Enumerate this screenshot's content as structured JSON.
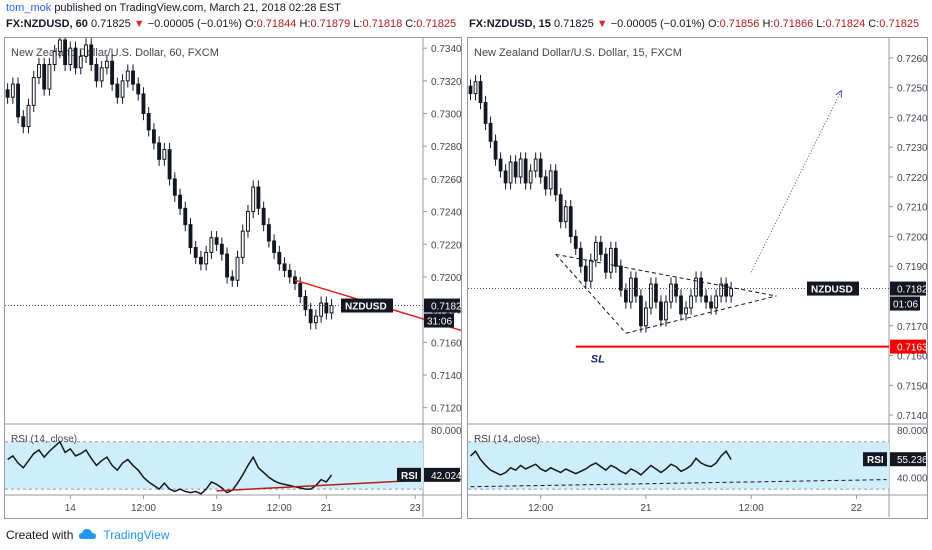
{
  "header": {
    "user": "tom_mok",
    "published": "published on TradingView.com, March 21, 2018 02:28 EST"
  },
  "footer": {
    "created_with": "Created with",
    "brand": "TradingView"
  },
  "colors": {
    "up_down_candles": "#131722",
    "rsi_band": "#cdeefa",
    "rsi_line": "#131722",
    "trendline_red": "#e02020",
    "sl_line": "#f00000",
    "projection": "#3f51b5",
    "price_label_bg": "#131722",
    "sl_label_bg": "#f00000"
  },
  "chart_data": [
    {
      "type": "candlestick",
      "ohlc_header": {
        "symbol": "FX:NZDUSD, 60",
        "last": "0.71825",
        "arrow": "▼",
        "change": "−0.00005 (−0.01%)",
        "o_label": "O:",
        "o": "0.71844",
        "h_label": "H:",
        "h": "0.71879",
        "l_label": "L:",
        "l": "0.71818",
        "c_label": "C:",
        "c": "0.71825"
      },
      "title": "New Zealand Dollar/U.S. Dollar, 60, FXCM",
      "price_axis": {
        "ylim": [
          0.711,
          0.7345
        ],
        "ticks": [
          "0.73400",
          "0.73200",
          "0.73000",
          "0.72800",
          "0.72600",
          "0.72400",
          "0.72200",
          "0.72000",
          "0.71800",
          "0.71600",
          "0.71400",
          "0.71200"
        ]
      },
      "last_price": 0.71825,
      "price_label": {
        "symbol": "NZDUSD",
        "value": "0.71825",
        "countdown": "31:06"
      },
      "close_series": [
        0.731,
        0.7318,
        0.7298,
        0.7292,
        0.7305,
        0.7322,
        0.733,
        0.7315,
        0.733,
        0.7338,
        0.7345,
        0.733,
        0.734,
        0.7328,
        0.7335,
        0.7342,
        0.733,
        0.732,
        0.7328,
        0.7332,
        0.7318,
        0.731,
        0.732,
        0.7326,
        0.7318,
        0.7312,
        0.73,
        0.729,
        0.7282,
        0.7272,
        0.7278,
        0.726,
        0.725,
        0.7242,
        0.7232,
        0.7218,
        0.7212,
        0.7208,
        0.7215,
        0.7224,
        0.722,
        0.7214,
        0.72,
        0.7198,
        0.7212,
        0.7228,
        0.724,
        0.7255,
        0.7242,
        0.7232,
        0.7222,
        0.7215,
        0.7208,
        0.7204,
        0.72,
        0.7196,
        0.7188,
        0.718,
        0.7172,
        0.7176,
        0.7184,
        0.7178,
        0.71825
      ],
      "candle_range": 0.0009,
      "trendline": {
        "from": [
          55,
          0.7198
        ],
        "to": [
          99,
          0.71555
        ]
      },
      "x_labels": [
        {
          "i": 12,
          "text": "14"
        },
        {
          "i": 26,
          "text": "12:00"
        },
        {
          "i": 40,
          "text": "19"
        },
        {
          "i": 52,
          "text": "12:00"
        },
        {
          "i": 61,
          "text": "21"
        },
        {
          "i": 78,
          "text": "23"
        }
      ],
      "x_count": 80,
      "rsi": {
        "label": "RSI (14, close)",
        "badge": "RSI",
        "value": "42.0249",
        "value_num": 42.0249,
        "ylim": [
          25,
          85
        ],
        "ticks": [
          "80.0000",
          "40.0000"
        ],
        "band": [
          30,
          70
        ],
        "values": [
          55,
          58,
          52,
          48,
          54,
          60,
          63,
          57,
          62,
          66,
          70,
          61,
          64,
          58,
          60,
          63,
          56,
          50,
          54,
          57,
          50,
          46,
          52,
          55,
          50,
          46,
          40,
          36,
          33,
          30,
          35,
          30,
          28,
          30,
          28,
          27,
          28,
          26,
          30,
          36,
          34,
          31,
          27,
          29,
          35,
          42,
          50,
          57,
          48,
          44,
          40,
          37,
          35,
          34,
          33,
          32,
          31,
          30,
          30,
          33,
          38,
          36,
          42
        ],
        "trendline": {
          "from": [
            40,
            28.5
          ],
          "to": [
            79,
            37.5
          ]
        }
      }
    },
    {
      "type": "candlestick",
      "ohlc_header": {
        "symbol": "FX:NZDUSD, 15",
        "last": "0.71825",
        "arrow": "▼",
        "change": "−0.00005 (−0.01%)",
        "o_label": "O:",
        "o": "0.71856",
        "h_label": "H:",
        "h": "0.71866",
        "l_label": "L:",
        "l": "0.71824",
        "c_label": "C:",
        "c": "0.71825"
      },
      "title": "New Zealand Dollar/U.S. Dollar, 15, FXCM",
      "price_axis": {
        "ylim": [
          0.7137,
          0.7266
        ],
        "ticks": [
          "0.72600",
          "0.72500",
          "0.72400",
          "0.72300",
          "0.72200",
          "0.72100",
          "0.72000",
          "0.71900",
          "0.71700",
          "0.71600",
          "0.71500",
          "0.71400"
        ]
      },
      "last_price": 0.71825,
      "price_label": {
        "symbol": "NZDUSD",
        "value": "0.71825",
        "countdown": "01:06"
      },
      "sl": {
        "label": "SL",
        "price": 0.7163,
        "value": "0.71630"
      },
      "close_series": [
        0.7248,
        0.7252,
        0.7245,
        0.7238,
        0.7232,
        0.7226,
        0.7222,
        0.7218,
        0.7225,
        0.722,
        0.7226,
        0.7218,
        0.7222,
        0.7226,
        0.722,
        0.7216,
        0.7222,
        0.7214,
        0.7205,
        0.721,
        0.72,
        0.7196,
        0.719,
        0.7185,
        0.7192,
        0.7198,
        0.7194,
        0.7188,
        0.7196,
        0.719,
        0.7182,
        0.7178,
        0.7186,
        0.718,
        0.717,
        0.7176,
        0.7184,
        0.7178,
        0.7172,
        0.7178,
        0.7184,
        0.718,
        0.7174,
        0.7176,
        0.718,
        0.7186,
        0.718,
        0.7178,
        0.7176,
        0.718,
        0.7184,
        0.718,
        0.71825
      ],
      "candle_range": 0.0005,
      "triangle": {
        "upper": {
          "from": [
            17,
            0.7194
          ],
          "to": [
            61,
            0.718
          ]
        },
        "lower": {
          "from": [
            31,
            0.71675
          ],
          "to": [
            61,
            0.718
          ]
        },
        "left_edge": {
          "from": [
            17,
            0.7194
          ],
          "to": [
            31,
            0.71675
          ]
        }
      },
      "projection": {
        "from": [
          56,
          0.7188
        ],
        "to": [
          74,
          0.7249
        ]
      },
      "x_labels": [
        {
          "i": 14,
          "text": "12:00"
        },
        {
          "i": 35,
          "text": "21"
        },
        {
          "i": 56,
          "text": "12:00"
        },
        {
          "i": 77,
          "text": "22"
        }
      ],
      "x_count": 84,
      "rsi": {
        "label": "RSI (14, close)",
        "badge": "RSI",
        "value": "55.2360",
        "value_num": 55.236,
        "ylim": [
          25,
          85
        ],
        "ticks": [
          "80.0000",
          "40.0000"
        ],
        "band": [
          30,
          70
        ],
        "values": [
          58,
          62,
          55,
          50,
          46,
          44,
          42,
          44,
          48,
          46,
          50,
          47,
          49,
          51,
          47,
          45,
          48,
          46,
          44,
          47,
          45,
          43,
          45,
          47,
          50,
          52,
          49,
          46,
          50,
          48,
          45,
          43,
          47,
          45,
          42,
          46,
          50,
          47,
          44,
          47,
          51,
          49,
          45,
          47,
          50,
          56,
          52,
          50,
          49,
          52,
          58,
          62,
          55
        ],
        "trendline": {
          "from": [
            0,
            32
          ],
          "to": [
            83,
            38
          ]
        }
      }
    }
  ]
}
